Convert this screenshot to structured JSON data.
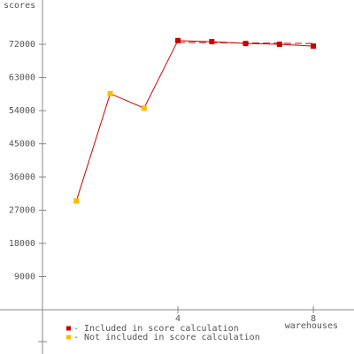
{
  "chart_data": {
    "type": "line",
    "y_label": "scores",
    "x_label": "warehouses",
    "x": [
      1,
      2,
      3,
      4,
      5,
      6,
      7,
      8
    ],
    "values": [
      29500,
      58600,
      54700,
      73000,
      72700,
      72200,
      72000,
      71500
    ],
    "line_color": "#cc0000",
    "point_colors": [
      "#ffbb00",
      "#ffbb00",
      "#ffbb00",
      "#cc0000",
      "#cc0000",
      "#cc0000",
      "#cc0000",
      "#cc0000"
    ],
    "score_line": {
      "x": [
        4,
        8
      ],
      "values": [
        72500,
        72200
      ],
      "color": "#cc0000"
    },
    "legend": [
      {
        "label": "- Included in score calculation",
        "color": "#cc0000"
      },
      {
        "label": "- Not included in score calculation",
        "color": "#ffbb00"
      }
    ],
    "xlim": [
      0,
      9.2
    ],
    "ylim": [
      -12000,
      84000
    ],
    "xticks": [
      4,
      8
    ],
    "yticks": [
      9000,
      18000,
      27000,
      36000,
      45000,
      54000,
      63000,
      72000
    ]
  }
}
